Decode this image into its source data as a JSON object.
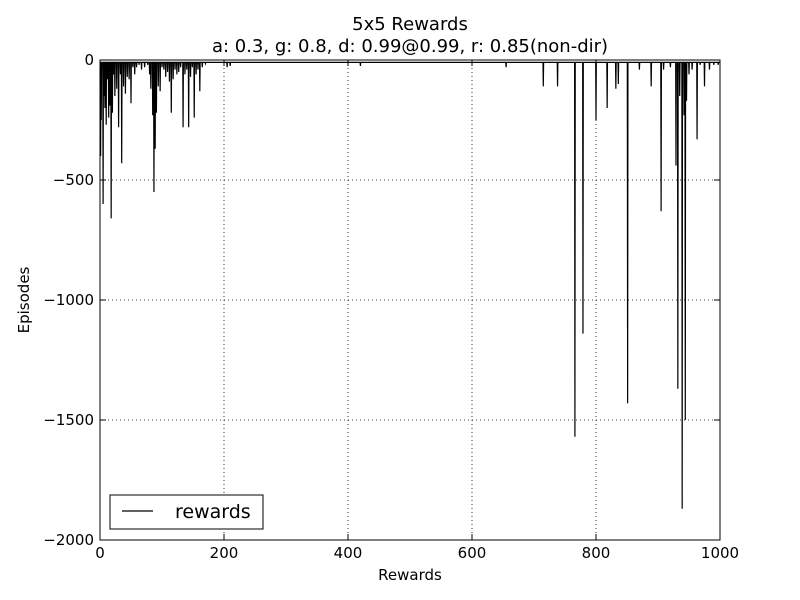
{
  "chart_data": {
    "type": "line",
    "title": "5x5 Rewards",
    "subtitle": "a: 0.3, g: 0.8, d: 0.99@0.99, r: 0.85(non-dir)",
    "xlabel": "Rewards",
    "ylabel": "Episodes",
    "xlim": [
      0,
      1000
    ],
    "ylim": [
      -2000,
      0
    ],
    "xticks": [
      0,
      200,
      400,
      600,
      800,
      1000
    ],
    "xtick_labels": [
      "0",
      "200",
      "400",
      "600",
      "800",
      "1000"
    ],
    "yticks": [
      0,
      -500,
      -1000,
      -1500,
      -2000
    ],
    "ytick_labels": [
      "0",
      "−500",
      "−1000",
      "−1500",
      "−2000"
    ],
    "grid": true,
    "legend_position": "lower-left",
    "series": [
      {
        "name": "rewards",
        "color": "#000000",
        "spikes": [
          [
            1,
            -400
          ],
          [
            2,
            -250
          ],
          [
            4,
            -30
          ],
          [
            5,
            -600
          ],
          [
            7,
            -150
          ],
          [
            8,
            -200
          ],
          [
            10,
            -270
          ],
          [
            12,
            -80
          ],
          [
            14,
            -240
          ],
          [
            16,
            -190
          ],
          [
            18,
            -660
          ],
          [
            20,
            -220
          ],
          [
            22,
            -60
          ],
          [
            24,
            -150
          ],
          [
            27,
            -120
          ],
          [
            30,
            -280
          ],
          [
            33,
            -60
          ],
          [
            35,
            -430
          ],
          [
            38,
            -110
          ],
          [
            41,
            -140
          ],
          [
            44,
            -70
          ],
          [
            47,
            -80
          ],
          [
            50,
            -180
          ],
          [
            53,
            -30
          ],
          [
            56,
            -60
          ],
          [
            59,
            -30
          ],
          [
            63,
            -20
          ],
          [
            67,
            -40
          ],
          [
            72,
            -30
          ],
          [
            77,
            -20
          ],
          [
            80,
            -60
          ],
          [
            82,
            -120
          ],
          [
            85,
            -230
          ],
          [
            87,
            -550
          ],
          [
            89,
            -370
          ],
          [
            91,
            -220
          ],
          [
            94,
            -110
          ],
          [
            97,
            -130
          ],
          [
            100,
            -30
          ],
          [
            103,
            -40
          ],
          [
            106,
            -70
          ],
          [
            109,
            -50
          ],
          [
            112,
            -90
          ],
          [
            115,
            -220
          ],
          [
            118,
            -80
          ],
          [
            121,
            -40
          ],
          [
            124,
            -60
          ],
          [
            127,
            -50
          ],
          [
            130,
            -30
          ],
          [
            134,
            -280
          ],
          [
            137,
            -60
          ],
          [
            140,
            -40
          ],
          [
            143,
            -280
          ],
          [
            146,
            -70
          ],
          [
            149,
            -30
          ],
          [
            152,
            -240
          ],
          [
            155,
            -60
          ],
          [
            158,
            -40
          ],
          [
            161,
            -130
          ],
          [
            165,
            -30
          ],
          [
            170,
            -15
          ],
          [
            180,
            -10
          ],
          [
            190,
            -10
          ],
          [
            205,
            -30
          ],
          [
            210,
            -25
          ],
          [
            230,
            -10
          ],
          [
            260,
            -10
          ],
          [
            290,
            -10
          ],
          [
            330,
            -10
          ],
          [
            370,
            -10
          ],
          [
            420,
            -25
          ],
          [
            460,
            -10
          ],
          [
            500,
            -10
          ],
          [
            540,
            -10
          ],
          [
            580,
            -10
          ],
          [
            620,
            -10
          ],
          [
            655,
            -30
          ],
          [
            680,
            -10
          ],
          [
            715,
            -110
          ],
          [
            738,
            -110
          ],
          [
            766,
            -1570
          ],
          [
            779,
            -1140
          ],
          [
            800,
            -250
          ],
          [
            818,
            -200
          ],
          [
            832,
            -120
          ],
          [
            836,
            -100
          ],
          [
            851,
            -1430
          ],
          [
            870,
            -40
          ],
          [
            889,
            -110
          ],
          [
            905,
            -630
          ],
          [
            909,
            -40
          ],
          [
            920,
            -30
          ],
          [
            929,
            -440
          ],
          [
            932,
            -1370
          ],
          [
            935,
            -150
          ],
          [
            939,
            -1870
          ],
          [
            942,
            -230
          ],
          [
            944,
            -1500
          ],
          [
            946,
            -170
          ],
          [
            950,
            -60
          ],
          [
            955,
            -40
          ],
          [
            963,
            -330
          ],
          [
            968,
            -20
          ],
          [
            975,
            -110
          ],
          [
            983,
            -40
          ],
          [
            990,
            -20
          ],
          [
            997,
            -20
          ]
        ],
        "baseline": -10
      }
    ]
  }
}
